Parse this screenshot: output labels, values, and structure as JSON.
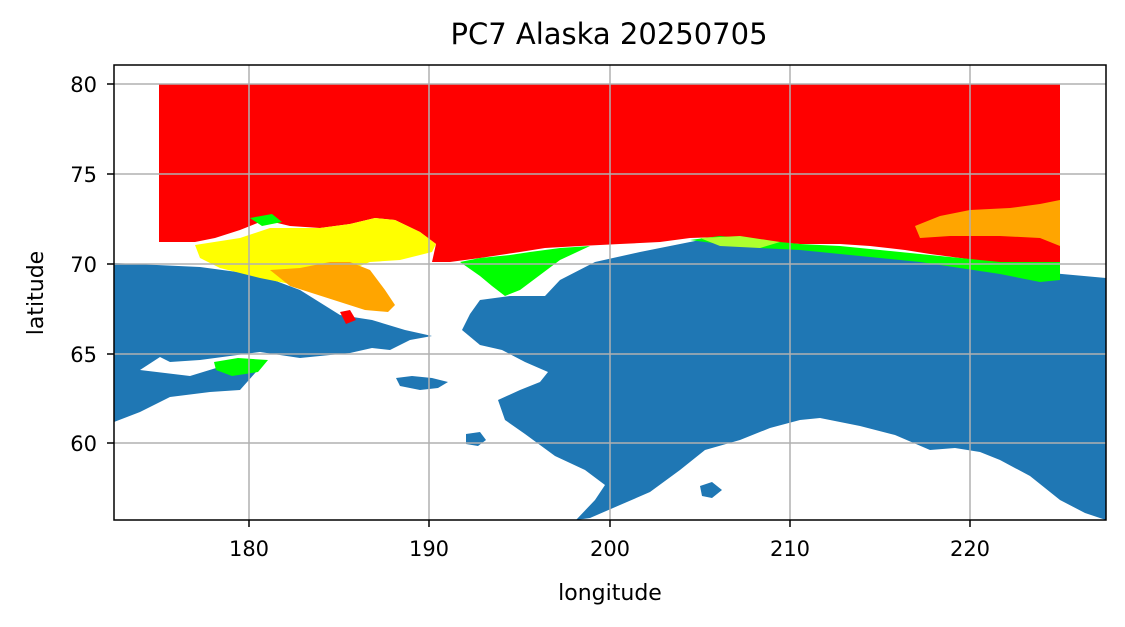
{
  "title": "PC7 Alaska 20250705",
  "chart_data": {
    "type": "map",
    "title": "PC7 Alaska 20250705",
    "xlabel": "longitude",
    "ylabel": "latitude",
    "xlim": [
      172.5,
      227.5
    ],
    "ylim": [
      55.8,
      81.1
    ],
    "xticks": [
      180,
      190,
      200,
      210,
      220
    ],
    "yticks": [
      60,
      65,
      70,
      75,
      80
    ],
    "xtick_labels": [
      "180",
      "190",
      "200",
      "210",
      "220"
    ],
    "ytick_labels": [
      "60",
      "65",
      "70",
      "75",
      "80"
    ],
    "grid": true,
    "data_extent": {
      "lon": [
        175,
        225
      ],
      "lat": [
        70,
        80
      ]
    },
    "colors": {
      "land": "#1f77b4",
      "ice_high": "#ff0000",
      "ice_medium": "#ffa500",
      "ice_low": "#ffff00",
      "ice_open": "#00ff00",
      "ice_light": "#adff2f",
      "grid": "#b0b0b0"
    }
  }
}
